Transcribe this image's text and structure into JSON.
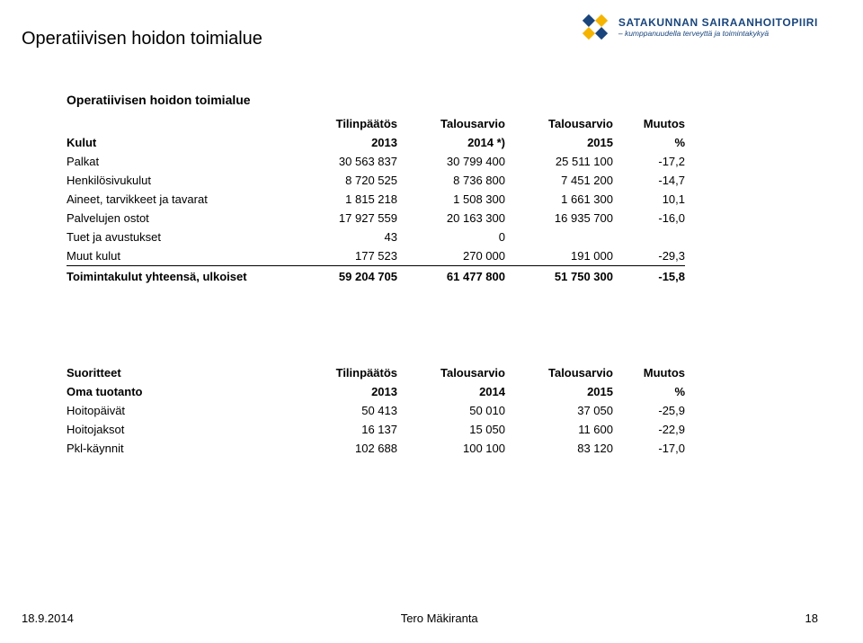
{
  "brand": {
    "name": "SATAKUNNAN SAIRAANHOITOPIIRI",
    "tagline": "– kumppanuudella terveyttä ja toimintakykyä"
  },
  "domain_title": "Operatiivisen hoidon toimialue",
  "kulut_table": {
    "title": "Operatiivisen hoidon toimialue",
    "head1": {
      "c1": "Tilinpäätös",
      "c2": "Talousarvio",
      "c3": "Talousarvio",
      "c4": "Muutos"
    },
    "head2": {
      "lbl": "Kulut",
      "c1": "2013",
      "c2": "2014 *)",
      "c3": "2015",
      "c4": "%"
    },
    "rows": [
      {
        "lbl": "Palkat",
        "c1": "30 563 837",
        "c2": "30 799 400",
        "c3": "25 511 100",
        "c4": "-17,2"
      },
      {
        "lbl": "Henkilösivukulut",
        "c1": "8 720 525",
        "c2": "8 736 800",
        "c3": "7 451 200",
        "c4": "-14,7"
      },
      {
        "lbl": "Aineet, tarvikkeet ja tavarat",
        "c1": "1 815 218",
        "c2": "1 508 300",
        "c3": "1 661 300",
        "c4": "10,1"
      },
      {
        "lbl": "Palvelujen ostot",
        "c1": "17 927 559",
        "c2": "20 163 300",
        "c3": "16 935 700",
        "c4": "-16,0"
      },
      {
        "lbl": "Tuet ja avustukset",
        "c1": "43",
        "c2": "0",
        "c3": "",
        "c4": ""
      },
      {
        "lbl": "Muut kulut",
        "c1": "177 523",
        "c2": "270 000",
        "c3": "191 000",
        "c4": "-29,3"
      }
    ],
    "sum": {
      "lbl": "Toimintakulut yhteensä, ulkoiset",
      "c1": "59 204 705",
      "c2": "61 477 800",
      "c3": "51 750 300",
      "c4": "-15,8"
    }
  },
  "suoritteet_table": {
    "head1": {
      "lbl": "Suoritteet",
      "c1": "Tilinpäätös",
      "c2": "Talousarvio",
      "c3": "Talousarvio",
      "c4": "Muutos"
    },
    "head2": {
      "lbl": "Oma tuotanto",
      "c1": "2013",
      "c2": "2014",
      "c3": "2015",
      "c4": "%"
    },
    "rows": [
      {
        "lbl": "Hoitopäivät",
        "c1": "50 413",
        "c2": "50 010",
        "c3": "37 050",
        "c4": "-25,9"
      },
      {
        "lbl": "Hoitojaksot",
        "c1": "16 137",
        "c2": "15 050",
        "c3": "11 600",
        "c4": "-22,9"
      },
      {
        "lbl": "Pkl-käynnit",
        "c1": "102 688",
        "c2": "100 100",
        "c3": "83 120",
        "c4": "-17,0"
      }
    ]
  },
  "footer": {
    "date": "18.9.2014",
    "author": "Tero Mäkiranta",
    "page": "18"
  },
  "colors": {
    "brand": "#19457c",
    "logo_yellow": "#f5b400",
    "text": "#000000",
    "bg": "#ffffff"
  },
  "typography": {
    "domain_title_pt": 20,
    "section_title_pt": 14,
    "table_pt": 13,
    "footer_pt": 13
  }
}
